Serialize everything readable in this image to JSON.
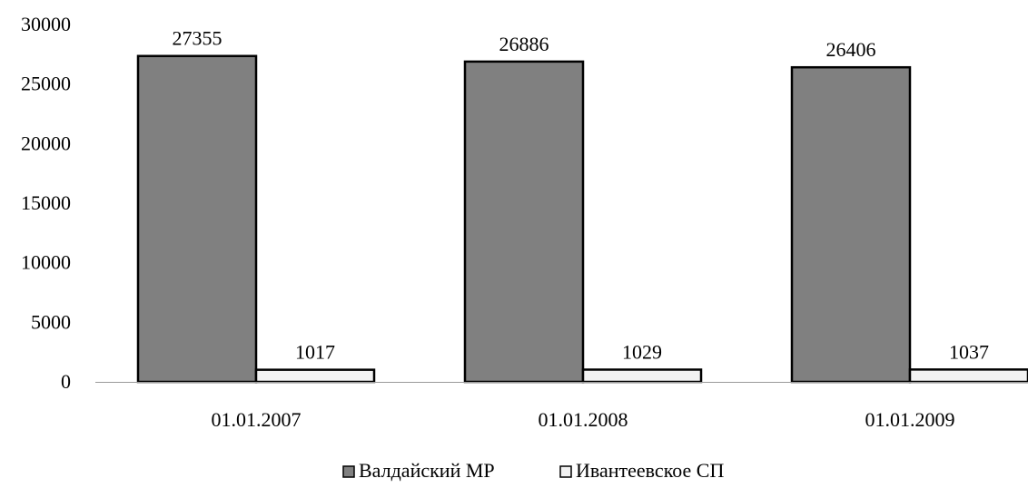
{
  "chart_data": {
    "type": "bar",
    "title": "",
    "xlabel": "",
    "ylabel": "",
    "categories": [
      "01.01.2007",
      "01.01.2008",
      "01.01.2009"
    ],
    "series": [
      {
        "name": "Валдайский МР",
        "values": [
          27355,
          26886,
          26406
        ],
        "color": "#808080"
      },
      {
        "name": "Ивантеевское СП",
        "values": [
          1017,
          1029,
          1037
        ],
        "color": "#f2f2f2"
      }
    ],
    "ylim": [
      0,
      30000
    ],
    "yticks": [
      "0",
      "5000",
      "10000",
      "15000",
      "20000",
      "25000",
      "30000"
    ],
    "data_labels": [
      [
        "27355",
        "26886",
        "26406"
      ],
      [
        "1017",
        "1029",
        "1037"
      ]
    ],
    "grid": false,
    "legend_position": "bottom"
  }
}
